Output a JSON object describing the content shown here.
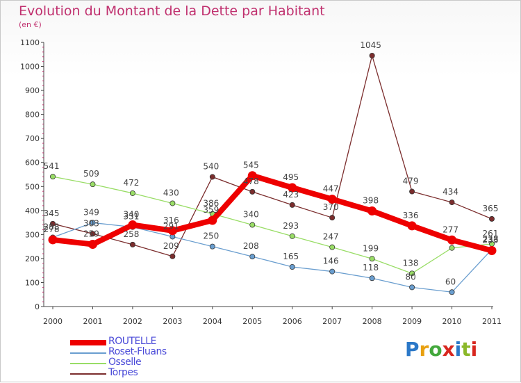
{
  "title": "Evolution du Montant de la Dette par Habitant",
  "subtitle": "(en €)",
  "brand": "Proxiti",
  "chart_data": {
    "type": "line",
    "title": "Evolution du Montant de la Dette par Habitant",
    "ylabel": "(en €)",
    "xlabel": "",
    "ylim": [
      0,
      1100
    ],
    "yticks": [
      0,
      100,
      200,
      300,
      400,
      500,
      600,
      700,
      800,
      900,
      1000,
      1100
    ],
    "categories": [
      "2000",
      "2001",
      "2002",
      "2003",
      "2004",
      "2005",
      "2006",
      "2007",
      "2008",
      "2009",
      "2010",
      "2011"
    ],
    "series": [
      {
        "name": "ROUTELLE",
        "color": "#ee0000",
        "values": [
          278,
          259,
          340,
          316,
          359,
          545,
          495,
          447,
          398,
          336,
          277,
          233
        ]
      },
      {
        "name": "Roset-Fluans",
        "color": "#6a9ecf",
        "values": [
          288,
          349,
          331,
          291,
          250,
          208,
          165,
          146,
          118,
          80,
          60,
          238
        ]
      },
      {
        "name": "Osselle",
        "color": "#99dd66",
        "values": [
          541,
          509,
          472,
          430,
          386,
          340,
          293,
          247,
          199,
          138,
          244,
          261
        ]
      },
      {
        "name": "Torpes",
        "color": "#7b2d2d",
        "values": [
          345,
          303,
          258,
          209,
          540,
          478,
          423,
          370,
          1045,
          479,
          434,
          365
        ]
      }
    ],
    "visible_labels": [
      [
        "278",
        "259",
        "340",
        "316",
        "359",
        "545",
        "495",
        "447",
        "398",
        "336",
        "277",
        "233"
      ],
      [
        "288",
        "349",
        "331",
        "291",
        "250",
        "208",
        "165",
        "146",
        "118",
        "80",
        "60",
        "238"
      ],
      [
        "541",
        "509",
        "472",
        "430",
        "386",
        "340",
        "293",
        "247",
        "199",
        "138",
        "",
        "261"
      ],
      [
        "345",
        "303",
        "258",
        "209",
        "540",
        "478",
        "423",
        "370",
        "1045",
        "479",
        "434",
        "365"
      ]
    ],
    "legend_position": "bottom-left",
    "grid": false
  }
}
